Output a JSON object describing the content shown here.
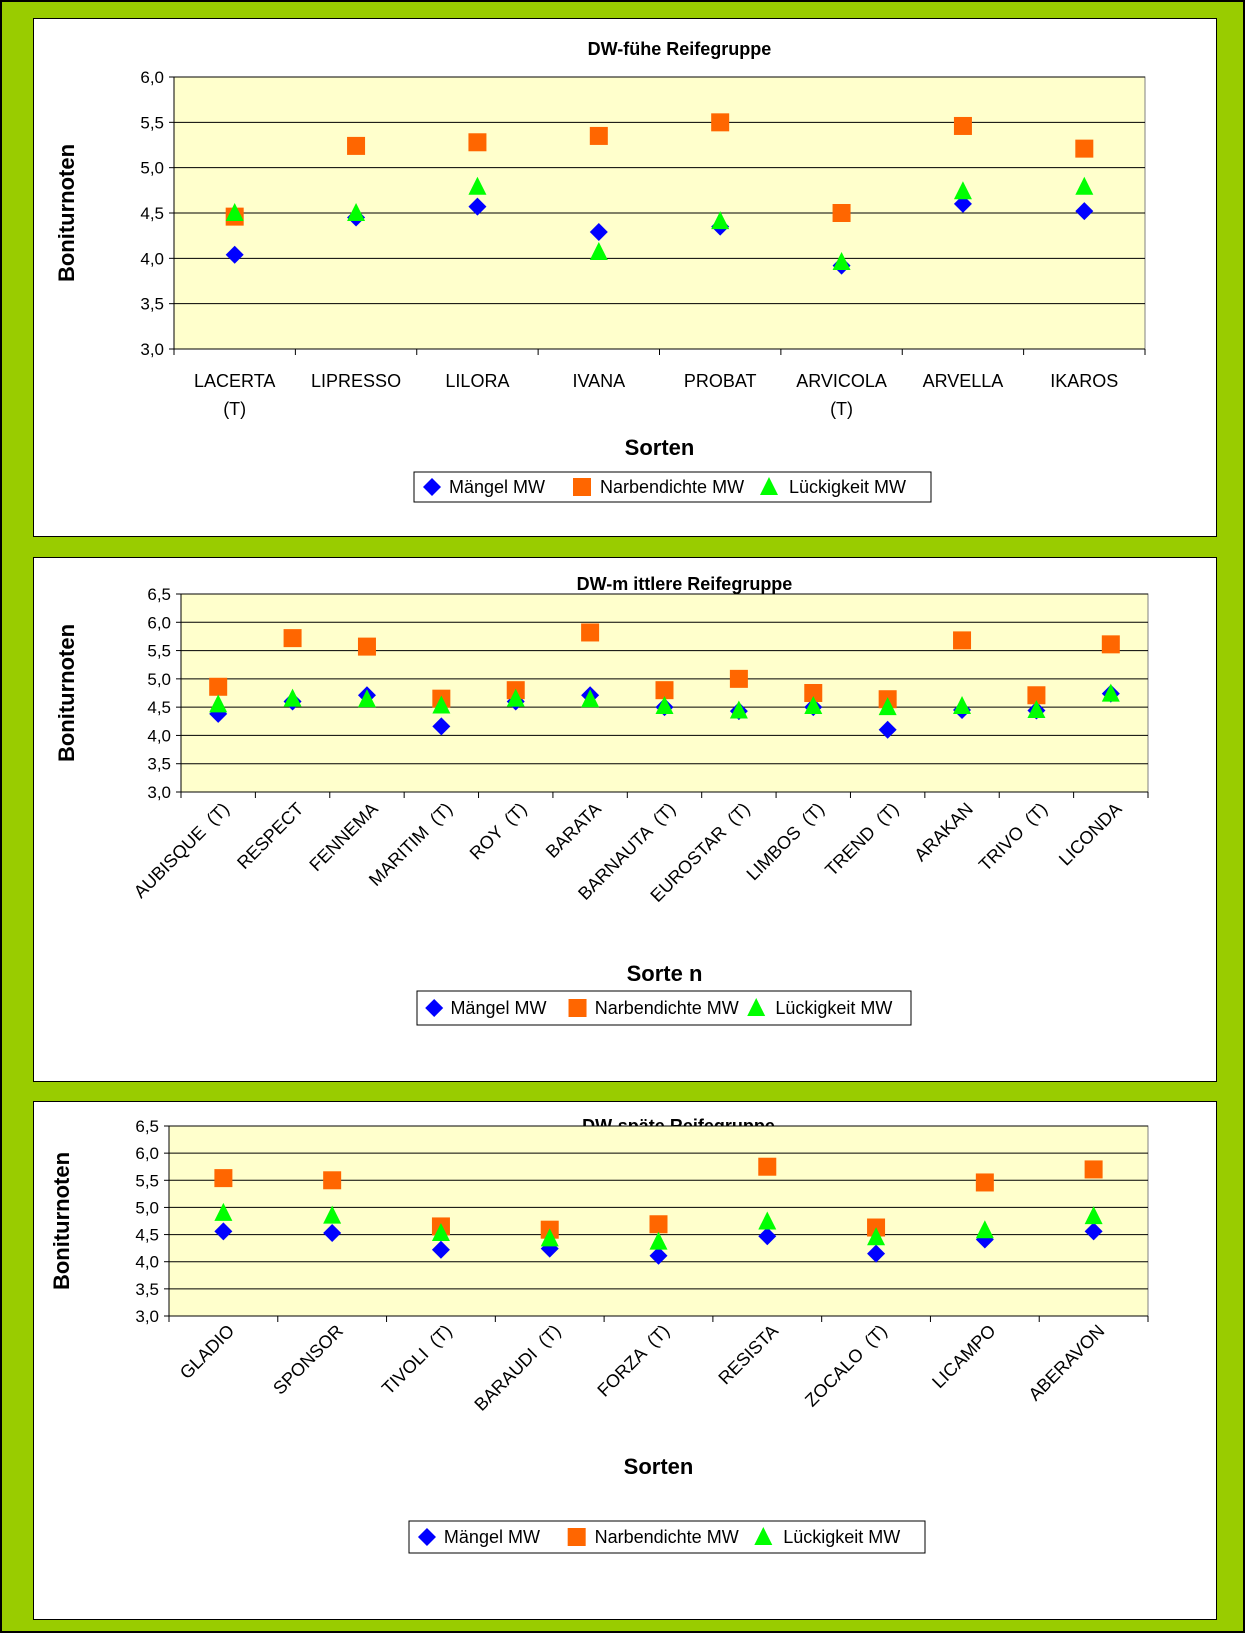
{
  "chart_data": [
    {
      "type": "scatter",
      "title": "DW-fühe Reifegruppe",
      "ylabel": "Boniturnoten",
      "xlabel": "Sorten",
      "ylim": [
        3.0,
        6.0
      ],
      "yticks": [
        "3,0",
        "3,5",
        "4,0",
        "4,5",
        "5,0",
        "5,5",
        "6,0"
      ],
      "categories": [
        [
          "LACERTA",
          "(T)"
        ],
        [
          "LIPRESSO"
        ],
        [
          "LILORA"
        ],
        [
          "IVANA"
        ],
        [
          "PROBAT"
        ],
        [
          "ARVICOLA",
          "(T)"
        ],
        [
          "ARVELLA"
        ],
        [
          "IKAROS"
        ]
      ],
      "series": [
        {
          "name": "Mängel MW",
          "marker": "diamond",
          "color": "#0000ff",
          "values": [
            4.04,
            4.45,
            4.57,
            4.29,
            4.35,
            3.92,
            4.6,
            4.52
          ]
        },
        {
          "name": "Narbendichte MW",
          "marker": "square",
          "color": "#ff6600",
          "values": [
            4.46,
            5.24,
            5.28,
            5.35,
            5.5,
            4.5,
            5.46,
            5.21
          ]
        },
        {
          "name": "Lückigkeit MW",
          "marker": "triangle",
          "color": "#00ff00",
          "values": [
            4.5,
            4.5,
            4.79,
            4.07,
            4.41,
            3.96,
            4.74,
            4.79
          ]
        }
      ],
      "grid": true,
      "legend": "bottom"
    },
    {
      "type": "scatter",
      "title": "DW-m ittlere Reifegruppe",
      "ylabel": "Boniturnoten",
      "xlabel": "Sorte n",
      "ylim": [
        3.0,
        6.5
      ],
      "yticks": [
        "3,0",
        "3,5",
        "4,0",
        "4,5",
        "5,0",
        "5,5",
        "6,0",
        "6,5"
      ],
      "categories": [
        "AUBISQUE  (T)",
        "RESPECT",
        "FENNEMA",
        "MARITIM  (T)",
        "ROY  (T)",
        "BARATA",
        "BARNAUTA  (T)",
        "EUROSTAR  (T)",
        "LIMBOS  (T)",
        "TREND  (T)",
        "ARAKAN",
        "TRIVO  (T)",
        "LICONDA"
      ],
      "series": [
        {
          "name": "Mängel MW",
          "marker": "diamond",
          "color": "#0000ff",
          "values": [
            4.38,
            4.6,
            4.71,
            4.16,
            4.6,
            4.71,
            4.5,
            4.43,
            4.5,
            4.1,
            4.45,
            4.44,
            4.74
          ]
        },
        {
          "name": "Narbendichte MW",
          "marker": "square",
          "color": "#ff6600",
          "values": [
            4.86,
            5.72,
            5.57,
            4.65,
            4.8,
            5.82,
            4.8,
            5.0,
            4.75,
            4.64,
            5.68,
            4.71,
            5.61
          ]
        },
        {
          "name": "Lückigkeit MW",
          "marker": "triangle",
          "color": "#00ff00",
          "values": [
            4.55,
            4.65,
            4.64,
            4.53,
            4.65,
            4.64,
            4.52,
            4.44,
            4.52,
            4.5,
            4.52,
            4.45,
            4.74
          ]
        }
      ],
      "grid": true,
      "legend": "bottom"
    },
    {
      "type": "scatter",
      "title": "DW-späte Reifegruppe",
      "ylabel": "Boniturnoten",
      "xlabel": "Sorten",
      "ylim": [
        3.0,
        6.5
      ],
      "yticks": [
        "3,0",
        "3,5",
        "4,0",
        "4,5",
        "5,0",
        "5,5",
        "6,0",
        "6,5"
      ],
      "categories": [
        "GLADIO",
        "SPONSOR",
        "TIVOLI  (T)",
        "BARAUDI  (T)",
        "FORZA  (T)",
        "RESISTA",
        "ZOCALO  (T)",
        "LICAMPO",
        "ABERAVON"
      ],
      "series": [
        {
          "name": "Mängel MW",
          "marker": "diamond",
          "color": "#0000ff",
          "values": [
            4.56,
            4.53,
            4.22,
            4.24,
            4.11,
            4.47,
            4.15,
            4.41,
            4.56
          ]
        },
        {
          "name": "Narbendichte MW",
          "marker": "square",
          "color": "#ff6600",
          "values": [
            5.54,
            5.5,
            4.65,
            4.59,
            4.69,
            5.75,
            4.63,
            5.46,
            5.7
          ]
        },
        {
          "name": "Lückigkeit MW",
          "marker": "triangle",
          "color": "#00ff00",
          "values": [
            4.9,
            4.85,
            4.53,
            4.43,
            4.37,
            4.74,
            4.45,
            4.58,
            4.84
          ]
        }
      ],
      "grid": true,
      "legend": "bottom"
    }
  ],
  "colors": {
    "page_background": "#99cc00",
    "plot_background": "#ffffcc"
  }
}
